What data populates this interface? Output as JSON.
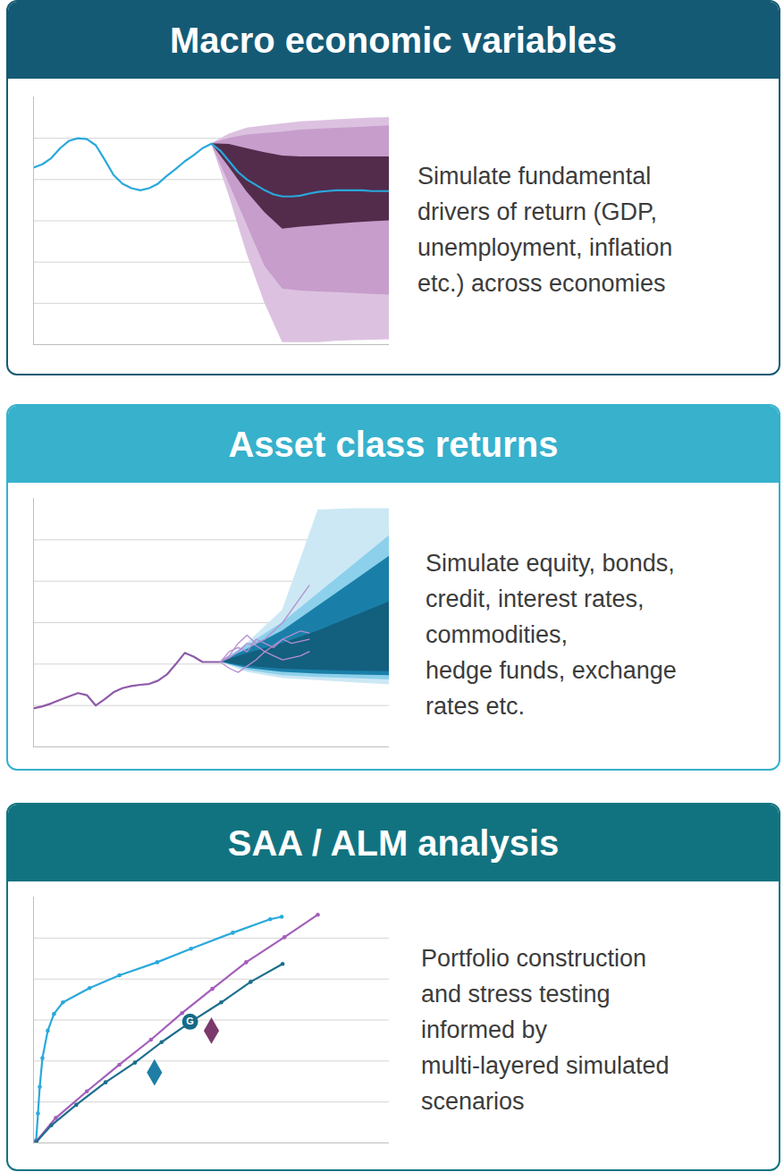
{
  "chart_data": [
    {
      "type": "line",
      "title": "Macro economic variables",
      "subtitle": [
        "Simulate fundamental",
        "drivers of return (GDP,",
        "unemployment, inflation",
        "etc.) across economies"
      ],
      "xlim": [
        0,
        40
      ],
      "ylim": [
        0,
        6
      ],
      "yticks": [
        1,
        2,
        3,
        4,
        5
      ],
      "grid": true,
      "tick_labels": false,
      "bands": [
        {
          "color": "#dcc2e0",
          "x": [
            20,
            22,
            24,
            26,
            28,
            30,
            32,
            34,
            36,
            38,
            40
          ],
          "lower": [
            4.87,
            3.6,
            2.2,
            1.0,
            0.05,
            0.05,
            0.05,
            0.08,
            0.1,
            0.11,
            0.12
          ],
          "upper": [
            4.87,
            5.1,
            5.25,
            5.3,
            5.35,
            5.4,
            5.42,
            5.45,
            5.47,
            5.49,
            5.5
          ]
        },
        {
          "color": "#c79dcc",
          "x": [
            20,
            22,
            24,
            26,
            28,
            30,
            32,
            34,
            36,
            38,
            40
          ],
          "lower": [
            4.87,
            3.9,
            2.9,
            1.9,
            1.35,
            1.3,
            1.28,
            1.26,
            1.24,
            1.22,
            1.2
          ],
          "upper": [
            4.87,
            5.0,
            5.08,
            5.12,
            5.15,
            5.2,
            5.22,
            5.24,
            5.26,
            5.28,
            5.3
          ]
        },
        {
          "color": "#532c4c",
          "x": [
            20,
            22,
            24,
            26,
            28,
            30,
            32,
            34,
            36,
            38,
            40
          ],
          "lower": [
            4.87,
            4.3,
            3.7,
            3.2,
            2.8,
            2.85,
            2.88,
            2.92,
            2.95,
            2.98,
            3.0
          ],
          "upper": [
            4.87,
            4.85,
            4.75,
            4.65,
            4.57,
            4.55,
            4.55,
            4.55,
            4.55,
            4.55,
            4.55
          ]
        }
      ],
      "series": [
        {
          "color": "#29a8dc",
          "x": [
            0,
            1,
            2,
            3,
            4,
            5,
            6,
            7,
            8,
            9,
            10,
            11,
            12,
            13,
            14,
            15,
            16,
            17,
            18,
            19,
            20,
            21,
            22,
            23,
            24,
            25,
            26,
            27,
            28,
            29,
            30,
            31,
            32,
            33,
            34,
            35,
            36,
            37,
            38,
            39,
            40
          ],
          "values": [
            4.29,
            4.37,
            4.52,
            4.76,
            4.94,
            5.0,
            4.98,
            4.83,
            4.48,
            4.11,
            3.9,
            3.79,
            3.74,
            3.79,
            3.9,
            4.09,
            4.26,
            4.44,
            4.59,
            4.76,
            4.87,
            4.7,
            4.44,
            4.18,
            4.0,
            3.87,
            3.74,
            3.64,
            3.59,
            3.59,
            3.61,
            3.66,
            3.7,
            3.72,
            3.74,
            3.74,
            3.74,
            3.74,
            3.72,
            3.72,
            3.72
          ]
        }
      ]
    },
    {
      "type": "line",
      "title": "Asset class returns",
      "subtitle": [
        "Simulate equity, bonds,",
        "credit, interest rates,",
        "commodities,",
        "hedge funds, exchange",
        "rates etc."
      ],
      "xlim": [
        0,
        40
      ],
      "ylim": [
        0,
        6
      ],
      "yticks": [
        1,
        2,
        3,
        4,
        5
      ],
      "grid": true,
      "tick_labels": false,
      "bands": [
        {
          "color": "#cce8f4",
          "x": [
            21,
            24,
            28,
            32,
            36,
            40
          ],
          "lower": [
            2.05,
            1.8,
            1.65,
            1.6,
            1.55,
            1.5
          ],
          "upper": [
            2.05,
            2.5,
            3.3,
            5.72,
            5.75,
            5.75
          ]
        },
        {
          "color": "#8dd0ec",
          "x": [
            21,
            24,
            28,
            32,
            36,
            40
          ],
          "lower": [
            2.05,
            1.85,
            1.72,
            1.68,
            1.65,
            1.62
          ],
          "upper": [
            2.05,
            2.45,
            3.0,
            3.7,
            4.4,
            5.1
          ]
        },
        {
          "color": "#1a7fa8",
          "x": [
            21,
            24,
            28,
            32,
            36,
            40
          ],
          "lower": [
            2.05,
            1.9,
            1.8,
            1.76,
            1.74,
            1.72
          ],
          "upper": [
            2.05,
            2.35,
            2.8,
            3.4,
            4.0,
            4.6
          ]
        },
        {
          "color": "#135f7e",
          "x": [
            21,
            24,
            28,
            32,
            36,
            40
          ],
          "lower": [
            2.05,
            1.95,
            1.88,
            1.85,
            1.83,
            1.82
          ],
          "upper": [
            2.05,
            2.25,
            2.5,
            2.8,
            3.15,
            3.5
          ]
        }
      ],
      "series": [
        {
          "color": "#8e5aa8",
          "x": [
            0,
            1,
            2,
            3,
            4,
            5,
            6,
            7,
            8,
            9,
            10,
            11,
            12,
            13,
            14,
            15,
            16,
            17,
            18,
            19,
            20,
            21
          ],
          "values": [
            0.93,
            0.98,
            1.05,
            1.14,
            1.22,
            1.3,
            1.25,
            1.0,
            1.15,
            1.32,
            1.42,
            1.47,
            1.5,
            1.52,
            1.6,
            1.75,
            2.0,
            2.27,
            2.18,
            2.05,
            2.05,
            2.05
          ]
        },
        {
          "color": "#b48ed0",
          "x": [
            21,
            22,
            23,
            24,
            25,
            26,
            27,
            28,
            29,
            30,
            31
          ],
          "values": [
            2.05,
            2.2,
            2.5,
            2.7,
            2.5,
            2.6,
            2.8,
            3.0,
            3.3,
            3.6,
            3.9
          ]
        },
        {
          "color": "#b48ed0",
          "x": [
            21,
            22,
            23,
            24,
            25,
            26,
            27,
            28,
            29,
            30,
            31
          ],
          "values": [
            2.05,
            2.3,
            2.4,
            2.3,
            2.6,
            2.5,
            2.4,
            2.6,
            2.7,
            2.8,
            2.75
          ]
        },
        {
          "color": "#b48ed0",
          "x": [
            21,
            22,
            23,
            24,
            25,
            26,
            27,
            28,
            29,
            30,
            31
          ],
          "values": [
            2.05,
            1.9,
            1.8,
            1.95,
            2.1,
            2.3,
            2.2,
            2.1,
            2.15,
            2.2,
            2.3
          ]
        },
        {
          "color": "#b48ed0",
          "x": [
            21,
            22,
            23,
            24,
            25,
            26,
            27,
            28,
            29,
            30,
            31
          ],
          "values": [
            2.05,
            2.15,
            2.3,
            2.5,
            2.45,
            2.3,
            2.45,
            2.6,
            2.5,
            2.55,
            2.6
          ]
        }
      ]
    },
    {
      "type": "line",
      "title": "SAA / ALM analysis",
      "subtitle": [
        "Portfolio construction",
        "and stress testing",
        "informed by",
        "multi-layered simulated",
        "scenarios"
      ],
      "xlim": [
        0,
        40
      ],
      "ylim": [
        0,
        6
      ],
      "yticks": [
        1,
        2,
        3,
        4,
        5
      ],
      "grid": true,
      "tick_labels": false,
      "series": [
        {
          "color": "#2aa9dc",
          "marker": "circle",
          "x": [
            0.3,
            0.5,
            0.7,
            1.0,
            1.6,
            2.3,
            3.3,
            6.3,
            9.65,
            13.9,
            17.7,
            22.4,
            26.6,
            27.9
          ],
          "values": [
            0.07,
            0.72,
            1.37,
            2.07,
            2.74,
            3.15,
            3.43,
            3.78,
            4.09,
            4.41,
            4.74,
            5.13,
            5.46,
            5.52
          ]
        },
        {
          "color": "#a45eba",
          "marker": "circle",
          "x": [
            0.3,
            2.5,
            6.0,
            9.65,
            13.2,
            16.7,
            20.1,
            23.9,
            28.2,
            31.96
          ],
          "values": [
            0.04,
            0.61,
            1.26,
            1.91,
            2.52,
            3.17,
            3.76,
            4.41,
            5.02,
            5.57
          ]
        },
        {
          "color": "#1c6e8c",
          "marker": "circle",
          "x": [
            0.3,
            2.0,
            4.8,
            8.1,
            11.4,
            14.4,
            17.7,
            21.1,
            24.4,
            28.0
          ],
          "values": [
            0.02,
            0.43,
            0.93,
            1.48,
            1.96,
            2.46,
            2.96,
            3.43,
            3.93,
            4.37
          ]
        }
      ],
      "points": [
        {
          "x": 17.6,
          "y": 2.96,
          "color": "#156a87",
          "marker": "circle",
          "label": "G"
        },
        {
          "x": 20.0,
          "y": 2.74,
          "color": "#7b3a6b",
          "marker": "diamond"
        },
        {
          "x": 13.6,
          "y": 1.72,
          "color": "#1f7ea6",
          "marker": "diamond"
        }
      ]
    }
  ]
}
